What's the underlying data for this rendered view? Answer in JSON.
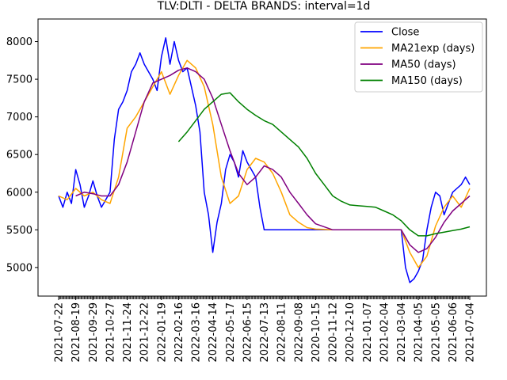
{
  "chart_data": {
    "type": "line",
    "title": "TLV:DLTI - DELTA BRANDS: interval=1d",
    "xlabel": "",
    "ylabel": "",
    "ylim": [
      4620,
      8300
    ],
    "y_ticks": [
      5000,
      5500,
      6000,
      6500,
      7000,
      7500,
      8000
    ],
    "categories": [
      "2021-07-22",
      "2021-08-19",
      "2021-09-29",
      "2021-10-27",
      "2021-11-24",
      "2021-12-22",
      "2022-01-19",
      "2022-02-16",
      "2022-03-16",
      "2022-04-14",
      "2022-05-17",
      "2022-06-15",
      "2022-07-13",
      "2022-08-11",
      "2022-09-08",
      "2020-10-15",
      "2020-11-12",
      "2020-12-10",
      "2021-01-07",
      "2021-02-04",
      "2021-03-04",
      "2021-04-05",
      "2021-05-05",
      "2021-06-06",
      "2021-07-04"
    ],
    "legend": {
      "placement": "top-right"
    },
    "grid": false,
    "series": [
      {
        "name": "Close",
        "color": "#0000ff",
        "x": [
          0,
          0.25,
          0.5,
          0.75,
          1,
          1.25,
          1.5,
          1.75,
          2,
          2.25,
          2.5,
          2.75,
          3,
          3.25,
          3.5,
          3.75,
          4,
          4.25,
          4.5,
          4.75,
          5,
          5.25,
          5.5,
          5.75,
          6,
          6.25,
          6.5,
          6.75,
          7,
          7.25,
          7.5,
          7.75,
          8,
          8.25,
          8.5,
          8.75,
          9,
          9.25,
          9.5,
          9.75,
          10,
          10.25,
          10.5,
          10.75,
          11,
          11.25,
          11.5,
          11.75,
          12,
          12.25,
          12.5,
          12.75,
          13,
          13.25,
          13.5,
          13.75,
          14,
          14.25,
          14.5,
          14.75,
          15,
          15.5,
          16,
          16.5,
          17,
          17.5,
          18,
          18.5,
          19,
          19.5,
          20,
          20.25,
          20.5,
          20.75,
          21,
          21.25,
          21.5,
          21.75,
          22,
          22.25,
          22.5,
          22.75,
          23,
          23.25,
          23.5,
          23.75,
          24
        ],
        "values": [
          5950,
          5800,
          6000,
          5850,
          6300,
          6100,
          5800,
          5950,
          6150,
          5950,
          5800,
          5900,
          6000,
          6700,
          7100,
          7200,
          7350,
          7600,
          7700,
          7850,
          7700,
          7600,
          7500,
          7350,
          7800,
          8050,
          7700,
          8000,
          7750,
          7600,
          7650,
          7400,
          7150,
          6800,
          6000,
          5700,
          5200,
          5600,
          5850,
          6300,
          6500,
          6400,
          6200,
          6550,
          6400,
          6300,
          6200,
          5800,
          5500,
          5500,
          5500,
          5500,
          5500,
          5500,
          5500,
          5500,
          5500,
          5500,
          5500,
          5500,
          5500,
          5500,
          5500,
          5500,
          5500,
          5500,
          5500,
          5500,
          5500,
          5500,
          5500,
          5000,
          4800,
          4850,
          4950,
          5100,
          5500,
          5800,
          6000,
          5950,
          5700,
          5850,
          6000,
          6050,
          6100,
          6200,
          6100
        ]
      },
      {
        "name": "MA21exp (days)",
        "color": "#ffa500",
        "x": [
          0,
          0.5,
          1,
          1.5,
          2,
          2.5,
          3,
          3.5,
          4,
          4.5,
          5,
          5.5,
          6,
          6.5,
          7,
          7.5,
          8,
          8.5,
          9,
          9.5,
          10,
          10.5,
          11,
          11.5,
          12,
          12.5,
          13,
          13.5,
          14,
          14.5,
          15,
          16,
          17,
          18,
          19,
          20,
          20.5,
          21,
          21.5,
          22,
          22.5,
          23,
          23.5,
          24
        ],
        "values": [
          5950,
          5900,
          6050,
          5950,
          6000,
          5900,
          5850,
          6200,
          6850,
          7000,
          7200,
          7400,
          7600,
          7300,
          7550,
          7750,
          7650,
          7400,
          6900,
          6200,
          5850,
          5950,
          6300,
          6450,
          6400,
          6250,
          6000,
          5700,
          5600,
          5530,
          5510,
          5500,
          5500,
          5500,
          5500,
          5500,
          5200,
          5000,
          5150,
          5550,
          5800,
          5950,
          5800,
          6050
        ]
      },
      {
        "name": "MA50 (days)",
        "color": "#800080",
        "x": [
          1,
          1.5,
          2,
          2.5,
          3,
          3.5,
          4,
          4.5,
          5,
          5.5,
          6,
          6.5,
          7,
          7.5,
          8,
          8.5,
          9,
          9.5,
          10,
          10.5,
          11,
          11.5,
          12,
          12.5,
          13,
          13.5,
          14,
          14.5,
          15,
          16,
          17,
          18,
          19,
          20,
          20.5,
          21,
          21.5,
          22,
          22.5,
          23,
          23.5,
          24
        ],
        "values": [
          5950,
          6000,
          5980,
          5950,
          5950,
          6100,
          6400,
          6800,
          7200,
          7450,
          7500,
          7550,
          7620,
          7650,
          7600,
          7500,
          7250,
          6900,
          6550,
          6250,
          6100,
          6200,
          6350,
          6300,
          6200,
          6000,
          5850,
          5700,
          5580,
          5500,
          5500,
          5500,
          5500,
          5500,
          5300,
          5200,
          5250,
          5400,
          5600,
          5750,
          5850,
          5950
        ]
      },
      {
        "name": "MA150 (days)",
        "color": "#008000",
        "x": [
          7,
          7.5,
          8,
          8.5,
          9,
          9.5,
          10,
          10.5,
          11,
          11.5,
          12,
          12.5,
          13,
          13.5,
          14,
          14.5,
          15,
          15.5,
          16,
          16.5,
          17,
          17.5,
          18,
          18.5,
          19,
          19.5,
          20,
          20.5,
          21,
          21.5,
          22,
          22.5,
          23,
          23.5,
          24
        ],
        "values": [
          6670,
          6800,
          6950,
          7100,
          7200,
          7300,
          7320,
          7200,
          7100,
          7020,
          6950,
          6900,
          6800,
          6700,
          6600,
          6450,
          6250,
          6100,
          5950,
          5880,
          5830,
          5820,
          5810,
          5800,
          5750,
          5700,
          5620,
          5500,
          5420,
          5420,
          5450,
          5470,
          5490,
          5510,
          5540
        ]
      }
    ]
  }
}
